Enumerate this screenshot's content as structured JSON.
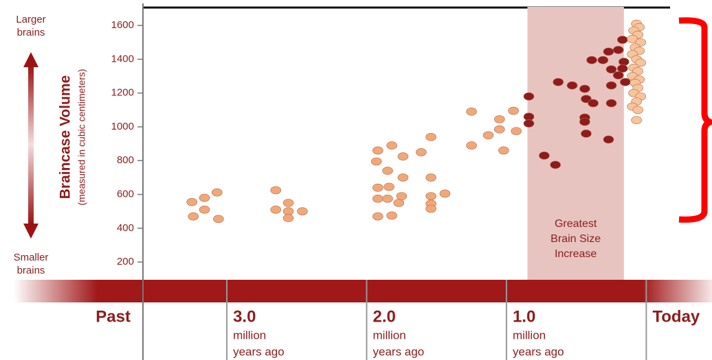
{
  "chart_data": {
    "type": "scatter",
    "y_label": "Braincase Volume",
    "y_sublabel": "(measured in cubic centimeters)",
    "top_note": [
      "Larger",
      "brains"
    ],
    "bottom_note": [
      "Smaller",
      "brains"
    ],
    "past_label": "Past",
    "x_unit_lines": [
      "million",
      "years ago"
    ],
    "highlight": {
      "range": [
        0.85,
        0.16
      ],
      "label": [
        "Greatest",
        "Brain Size",
        "Increase"
      ],
      "color": "#e8c4c0"
    },
    "xlim": [
      3.6,
      -0.47
    ],
    "xticks": [
      {
        "value": 3,
        "label": "3.0"
      },
      {
        "value": 2,
        "label": "2.0"
      },
      {
        "value": 1,
        "label": "1.0"
      },
      {
        "value": 0,
        "label": "Today"
      }
    ],
    "ylim": [
      95,
      1710
    ],
    "yticks": [
      200,
      400,
      600,
      800,
      1000,
      1200,
      1400,
      1600
    ],
    "series": [
      {
        "color": "#f0a878",
        "x": [
          3.25,
          3.16,
          3.07,
          3.24,
          3.16,
          3.06,
          2.65,
          2.65,
          2.56,
          2.56,
          2.56,
          2.46,
          1.92,
          1.82,
          1.93,
          1.85,
          1.92,
          1.84,
          1.74,
          1.92,
          1.85,
          1.77,
          1.75,
          1.92,
          1.82,
          1.74,
          1.61,
          1.54,
          1.54,
          1.54,
          1.54,
          1.54,
          1.44,
          1.25,
          1.25,
          1.13,
          1.05,
          1.05,
          0.95,
          0.93,
          1.02
        ],
        "values": [
          555,
          580,
          612,
          470,
          510,
          455,
          625,
          510,
          550,
          500,
          460,
          500,
          860,
          890,
          795,
          740,
          640,
          645,
          700,
          575,
          575,
          550,
          590,
          470,
          475,
          825,
          850,
          940,
          700,
          590,
          545,
          515,
          605,
          1090,
          890,
          950,
          1045,
          985,
          1095,
          975,
          860
        ]
      },
      {
        "color": "#8e1c1c",
        "x": [
          0.84,
          0.84,
          0.84,
          0.73,
          0.65,
          0.63,
          0.53,
          0.44,
          0.43,
          0.44,
          0.44,
          0.43,
          0.38,
          0.39,
          0.31,
          0.27,
          0.27,
          0.25,
          0.25,
          0.25,
          0.2,
          0.2,
          0.17,
          0.16,
          0.15,
          0.17
        ],
        "values": [
          1180,
          1060,
          1020,
          830,
          775,
          1265,
          1245,
          1225,
          1165,
          1055,
          1030,
          960,
          1140,
          1395,
          1395,
          925,
          1445,
          1340,
          1245,
          1140,
          1455,
          1305,
          1515,
          1385,
          1265,
          1345
        ]
      },
      {
        "color": "#f7c49c",
        "x": [
          0.07,
          0.05,
          0.09,
          0.06,
          0.1,
          0.04,
          0.08,
          0.05,
          0.1,
          0.07,
          0.04,
          0.09,
          0.06,
          0.1,
          0.05,
          0.08,
          0.06,
          0.09,
          0.04,
          0.07,
          0.1,
          0.06,
          0.07
        ],
        "values": [
          1610,
          1590,
          1570,
          1545,
          1520,
          1500,
          1470,
          1450,
          1430,
          1400,
          1380,
          1350,
          1330,
          1300,
          1280,
          1260,
          1230,
          1200,
          1180,
          1150,
          1120,
          1100,
          1040
        ]
      }
    ]
  }
}
